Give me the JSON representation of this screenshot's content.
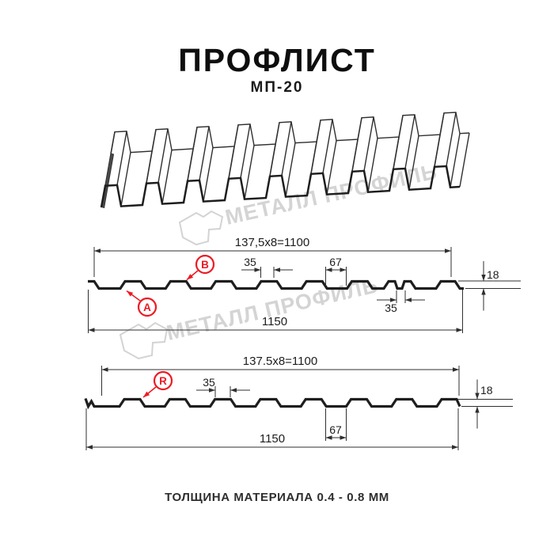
{
  "page": {
    "title": "ПРОФЛИСТ",
    "subtitle": "МП-20",
    "caption": "ТОЛЩИНА МАТЕРИАЛА 0.4 - 0.8 ММ"
  },
  "watermark": {
    "text": "МЕТАЛЛ ПРОФИЛЬ"
  },
  "colors": {
    "line": "#1e1e1e",
    "thin_line": "#2f2f2f",
    "red": "#ec1b24",
    "watermark": "#d3d3d3"
  },
  "profile_top": {
    "dim_pitch": "137,5x8=1100",
    "dim_rib_top": "35",
    "dim_valley": "67",
    "dim_height": "18",
    "dim_slot": "35",
    "dim_width": "1150",
    "label_a": "A",
    "label_b": "B"
  },
  "profile_bottom": {
    "dim_pitch": "137.5x8=1100",
    "dim_rib_top": "35",
    "dim_valley": "67",
    "dim_height": "18",
    "dim_width": "1150",
    "label_r": "R"
  }
}
